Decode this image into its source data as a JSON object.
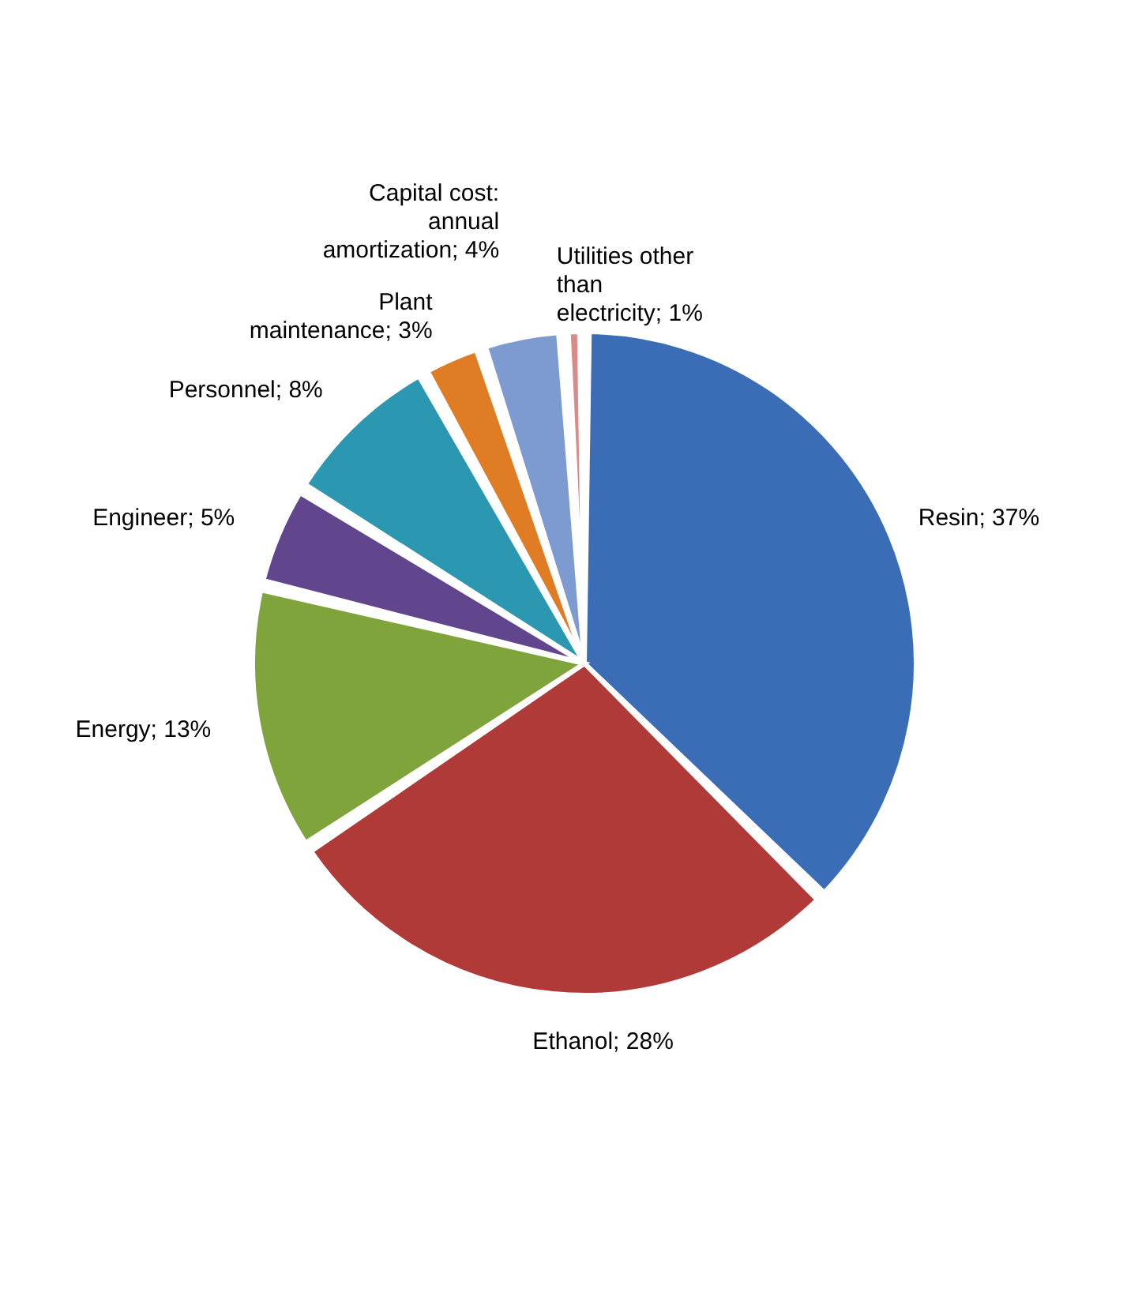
{
  "chart_data": {
    "type": "pie",
    "categories": [
      "Resin",
      "Ethanol",
      "Energy",
      "Engineer",
      "Personnel",
      "Plant maintenance",
      "Capital cost: annual amortization",
      "Utilities other than electricity"
    ],
    "values": [
      37,
      28,
      13,
      5,
      8,
      3,
      4,
      1
    ],
    "colors": [
      "#3a6db5",
      "#b03a37",
      "#7fa43b",
      "#61468e",
      "#2c97b0",
      "#e07c24",
      "#7d9bd0",
      "#d98a8a"
    ],
    "value_labels": [
      "37%",
      "28%",
      "13%",
      "5%",
      "8%",
      "3%",
      "4%",
      "1%"
    ]
  }
}
